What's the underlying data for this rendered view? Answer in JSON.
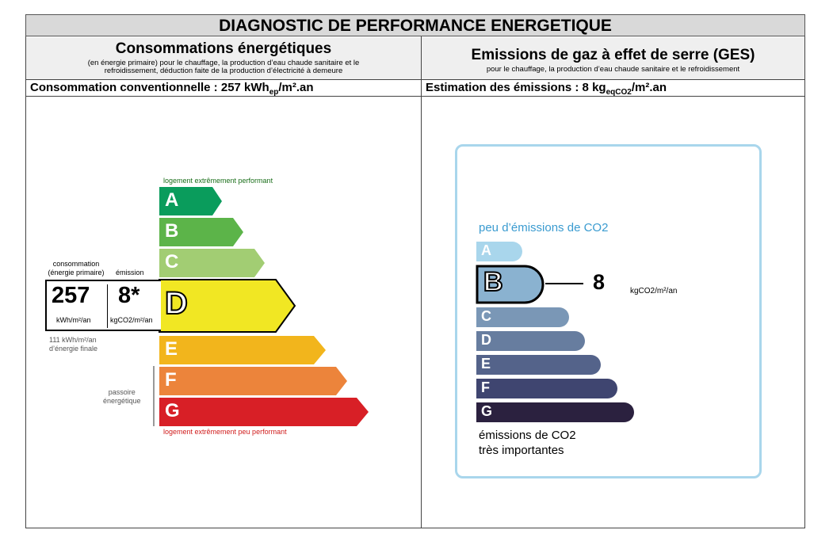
{
  "title": "DIAGNOSTIC DE PERFORMANCE ENERGETIQUE",
  "left": {
    "heading": "Consommations énergétiques",
    "subheading_1": "(en énergie primaire) pour le chauffage, la production d’eau chaude sanitaire et le",
    "subheading_2": "refroidissement, déduction faite de la production d’électricité à demeure",
    "conso_prefix": "Consommation conventionnelle : 257 kWh",
    "conso_sub": "ep",
    "conso_suffix": "/m².an",
    "top_caption": "logement extrêmement performant",
    "bottom_caption": "logement extrêmement peu performant",
    "classes": [
      {
        "letter": "A",
        "color": "#0a9c5c"
      },
      {
        "letter": "B",
        "color": "#5cb449"
      },
      {
        "letter": "C",
        "color": "#a2cd73"
      },
      {
        "letter": "D",
        "color": "#f1e723"
      },
      {
        "letter": "E",
        "color": "#f2b51c"
      },
      {
        "letter": "F",
        "color": "#ec843b"
      },
      {
        "letter": "G",
        "color": "#d81f26"
      }
    ],
    "current_class": "D",
    "box_label_conso_1": "consommation",
    "box_label_conso_2": "(énergie primaire)",
    "box_label_emission": "émission",
    "conso_value": "257",
    "conso_unit": "kWh/m²/an",
    "emission_value": "8*",
    "emission_unit": "kgCO2/m²/an",
    "final_energy_1": "111 kWh/m²/an",
    "final_energy_2": "d’énergie finale",
    "passoire_1": "passoire",
    "passoire_2": "énergétique"
  },
  "right": {
    "heading": "Emissions de gaz à effet de serre (GES)",
    "subheading": "pour le chauffage, la production d’eau chaude sanitaire et le refroidissement",
    "estimation_prefix": "Estimation des émissions : 8 kg",
    "estimation_sub": "eqCO2",
    "estimation_suffix": "/m².an",
    "top_caption": "peu d’émissions de CO2",
    "bottom_caption_1": "émissions de CO2",
    "bottom_caption_2": "très importantes",
    "classes": [
      {
        "letter": "A",
        "color": "#a9d6ec"
      },
      {
        "letter": "B",
        "color": "#8ab2d0"
      },
      {
        "letter": "C",
        "color": "#7a97b6"
      },
      {
        "letter": "D",
        "color": "#677d9f"
      },
      {
        "letter": "E",
        "color": "#54638a"
      },
      {
        "letter": "F",
        "color": "#3f4570"
      },
      {
        "letter": "G",
        "color": "#2b213f"
      }
    ],
    "current_class": "B",
    "value": "8",
    "unit": "kgCO2/m²/an"
  }
}
